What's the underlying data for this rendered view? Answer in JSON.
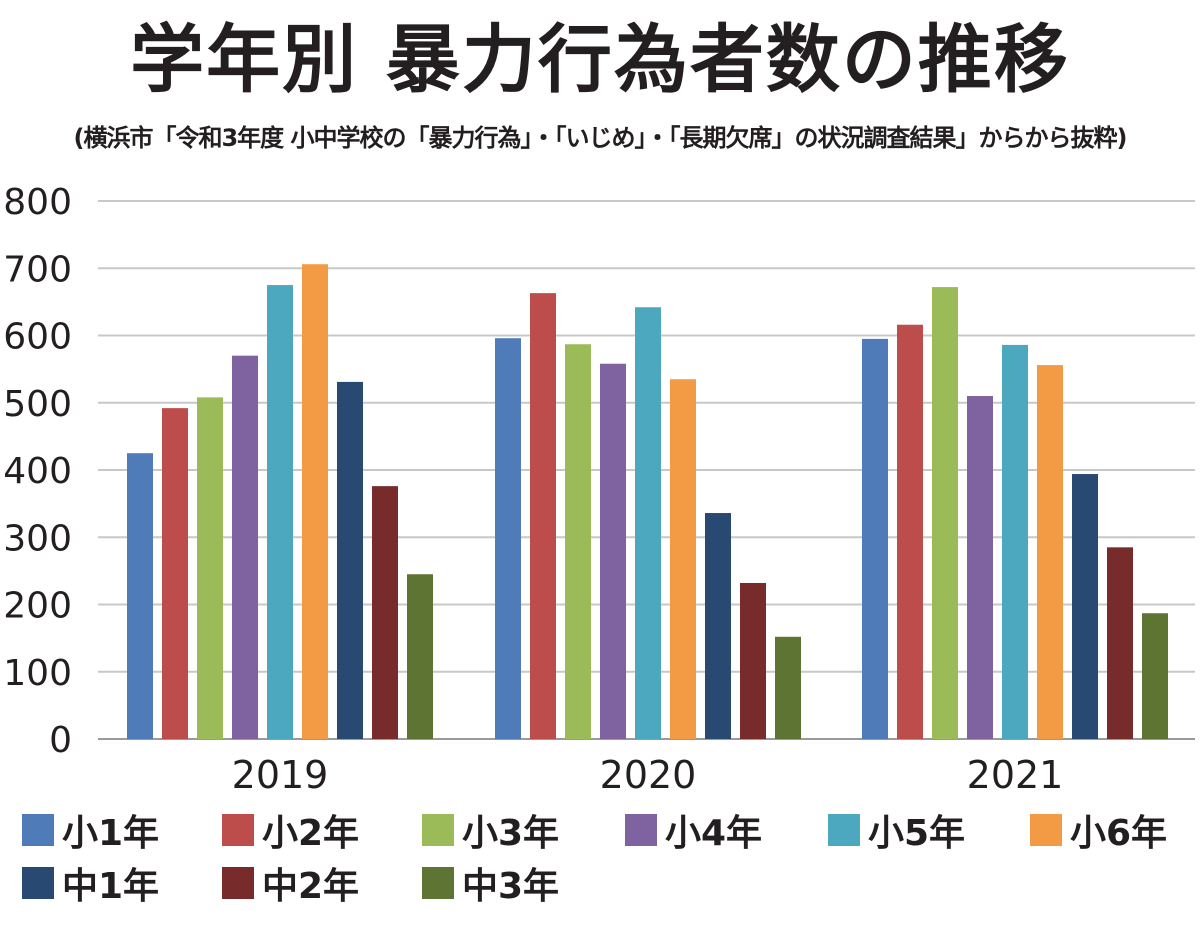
{
  "chart_data": {
    "type": "bar",
    "title": "学年別 暴力行為者数の推移",
    "subtitle": "(横浜市「令和3年度 小中学校の「暴力行為」・「いじめ」・「長期欠席」の状況調査結果」からから抜粋)",
    "categories": [
      "2019",
      "2020",
      "2021"
    ],
    "ylim": [
      0,
      800
    ],
    "yticks": [
      "0",
      "100",
      "200",
      "300",
      "400",
      "500",
      "600",
      "700",
      "800"
    ],
    "grid": true,
    "legend_position": "bottom",
    "series": [
      {
        "name": "小1年",
        "color": "#4f7bb8",
        "values": [
          425,
          596,
          595
        ]
      },
      {
        "name": "小2年",
        "color": "#bd4d4a",
        "values": [
          492,
          663,
          616
        ]
      },
      {
        "name": "小3年",
        "color": "#9bbb59",
        "values": [
          508,
          587,
          672
        ]
      },
      {
        "name": "小4年",
        "color": "#7f63a0",
        "values": [
          570,
          558,
          510
        ]
      },
      {
        "name": "小5年",
        "color": "#4ba8bf",
        "values": [
          675,
          642,
          586
        ]
      },
      {
        "name": "小6年",
        "color": "#f39a45",
        "values": [
          706,
          535,
          556
        ]
      },
      {
        "name": "中1年",
        "color": "#284a72",
        "values": [
          531,
          336,
          394
        ]
      },
      {
        "name": "中2年",
        "color": "#772c2b",
        "values": [
          376,
          232,
          285
        ]
      },
      {
        "name": "中3年",
        "color": "#5e7432",
        "values": [
          245,
          152,
          187
        ]
      }
    ]
  }
}
